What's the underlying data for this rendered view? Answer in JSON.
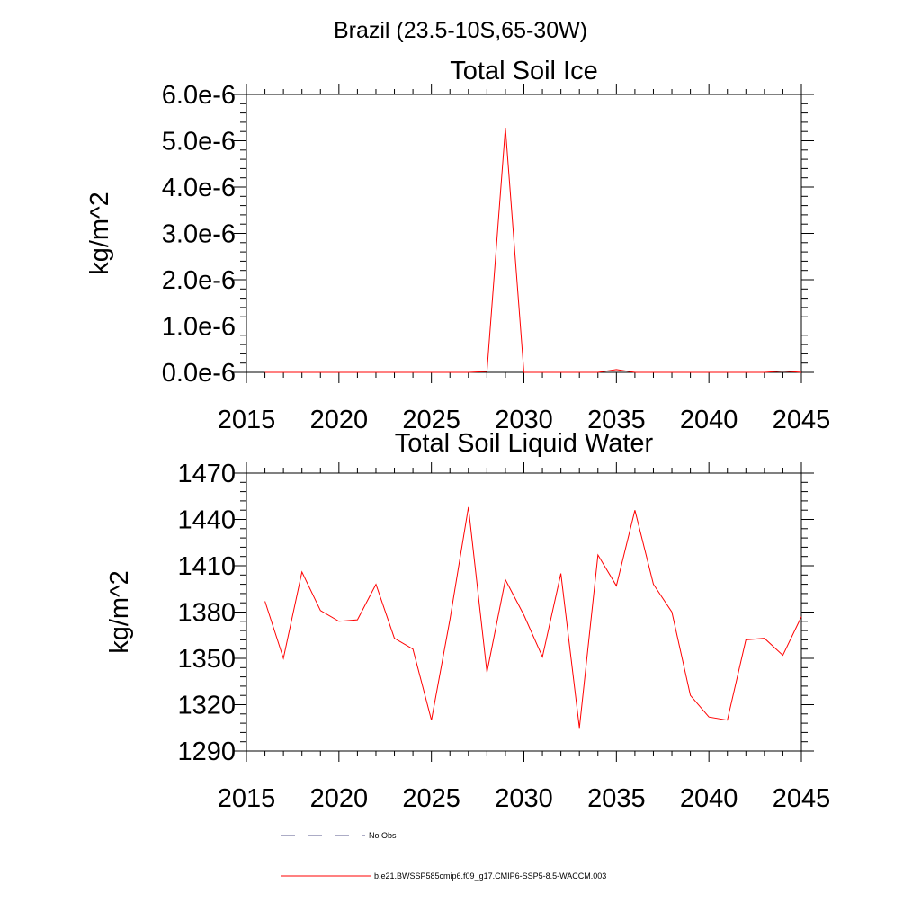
{
  "figure_title": "Brazil (23.5-10S,65-30W)",
  "colors": {
    "model": "#ff0000",
    "obs": "#5a5a8c",
    "axis": "#000000"
  },
  "legend": [
    {
      "label": "No Obs",
      "style": "dashed",
      "color": "#5a5a8c"
    },
    {
      "label": "b.e21.BWSSP585cmip6.f09_g17.CMIP6-SSP5-8.5-WACCM.003",
      "style": "solid",
      "color": "#ff0000"
    }
  ],
  "chart_data": [
    {
      "type": "line",
      "title": "Total Soil Ice",
      "xlabel": "",
      "ylabel": "kg/m^2",
      "xlim": [
        2015,
        2045
      ],
      "ylim": [
        0,
        6e-06
      ],
      "xticks": [
        "2015",
        "2020",
        "2025",
        "2030",
        "2035",
        "2040",
        "2045"
      ],
      "yticks": [
        "0.0e-6",
        "1.0e-6",
        "2.0e-6",
        "3.0e-6",
        "4.0e-6",
        "5.0e-6",
        "6.0e-6"
      ],
      "x": [
        2016,
        2017,
        2018,
        2019,
        2020,
        2021,
        2022,
        2023,
        2024,
        2025,
        2026,
        2027,
        2028,
        2029,
        2030,
        2031,
        2032,
        2033,
        2034,
        2035,
        2036,
        2037,
        2038,
        2039,
        2040,
        2041,
        2042,
        2043,
        2044,
        2045
      ],
      "series": [
        {
          "name": "b.e21.BWSSP585cmip6.f09_g17.CMIP6-SSP5-8.5-WACCM.003",
          "values": [
            0,
            0,
            0,
            0,
            0,
            0,
            0,
            0,
            0,
            0,
            0,
            0,
            2e-08,
            5.28e-06,
            0,
            0,
            0,
            0,
            0,
            6e-08,
            0,
            0,
            0,
            0,
            0,
            0,
            0,
            0,
            3e-08,
            0
          ]
        }
      ]
    },
    {
      "type": "line",
      "title": "Total Soil Liquid Water",
      "xlabel": "",
      "ylabel": "kg/m^2",
      "xlim": [
        2015,
        2045
      ],
      "ylim": [
        1290,
        1470
      ],
      "xticks": [
        "2015",
        "2020",
        "2025",
        "2030",
        "2035",
        "2040",
        "2045"
      ],
      "yticks": [
        "1290",
        "1320",
        "1350",
        "1380",
        "1410",
        "1440",
        "1470"
      ],
      "x": [
        2016,
        2017,
        2018,
        2019,
        2020,
        2021,
        2022,
        2023,
        2024,
        2025,
        2026,
        2027,
        2028,
        2029,
        2030,
        2031,
        2032,
        2033,
        2034,
        2035,
        2036,
        2037,
        2038,
        2039,
        2040,
        2041,
        2042,
        2043,
        2044,
        2045
      ],
      "series": [
        {
          "name": "b.e21.BWSSP585cmip6.f09_g17.CMIP6-SSP5-8.5-WACCM.003",
          "values": [
            1387,
            1350,
            1406,
            1381,
            1374,
            1375,
            1398,
            1363,
            1356,
            1310,
            1375,
            1448,
            1341,
            1401,
            1378,
            1351,
            1405,
            1305,
            1417,
            1397,
            1446,
            1398,
            1380,
            1326,
            1312,
            1310,
            1362,
            1363,
            1352,
            1377
          ]
        }
      ]
    }
  ]
}
